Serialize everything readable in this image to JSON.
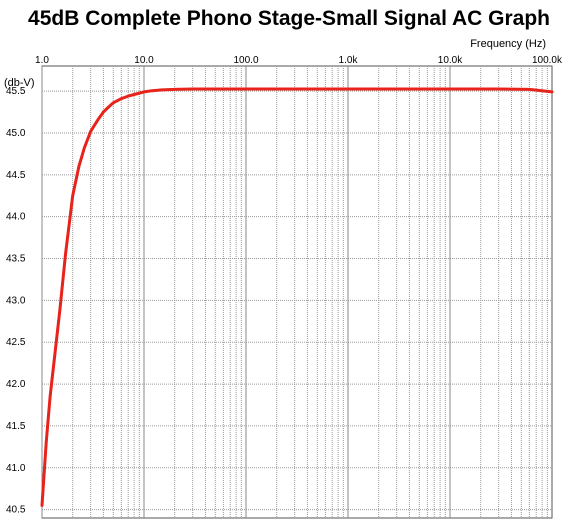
{
  "chart_data": {
    "type": "line",
    "title": "45dB Complete Phono Stage-Small Signal AC Graph",
    "xlabel": "Frequency  (Hz)",
    "ylabel": "(db-V)",
    "xscale": "log",
    "xlim": [
      1,
      100000
    ],
    "ylim": [
      40.4,
      45.8
    ],
    "grid": true,
    "x_tick_labels": [
      "1.0",
      "10.0",
      "100.0",
      "1.0k",
      "10.0k",
      "100.0k"
    ],
    "y_tick_labels": [
      "45.5",
      "45.0",
      "44.5",
      "44.0",
      "43.5",
      "43.0",
      "42.5",
      "42.0",
      "41.5",
      "41.0",
      "40.5"
    ],
    "series": [
      {
        "color": "#e8231b",
        "x": [
          1,
          1.1,
          1.2,
          1.35,
          1.5,
          1.7,
          2.0,
          2.3,
          2.6,
          3.0,
          3.5,
          4.0,
          4.5,
          5.0,
          6.0,
          7.0,
          8.0,
          10,
          12,
          15,
          20,
          30,
          50,
          100,
          1000,
          10000,
          30000,
          60000,
          100000
        ],
        "y": [
          40.55,
          41.3,
          41.85,
          42.4,
          42.9,
          43.55,
          44.25,
          44.6,
          44.82,
          45.02,
          45.15,
          45.25,
          45.31,
          45.36,
          45.41,
          45.44,
          45.46,
          45.49,
          45.505,
          45.515,
          45.52,
          45.525,
          45.525,
          45.525,
          45.525,
          45.525,
          45.525,
          45.52,
          45.49
        ]
      }
    ]
  }
}
